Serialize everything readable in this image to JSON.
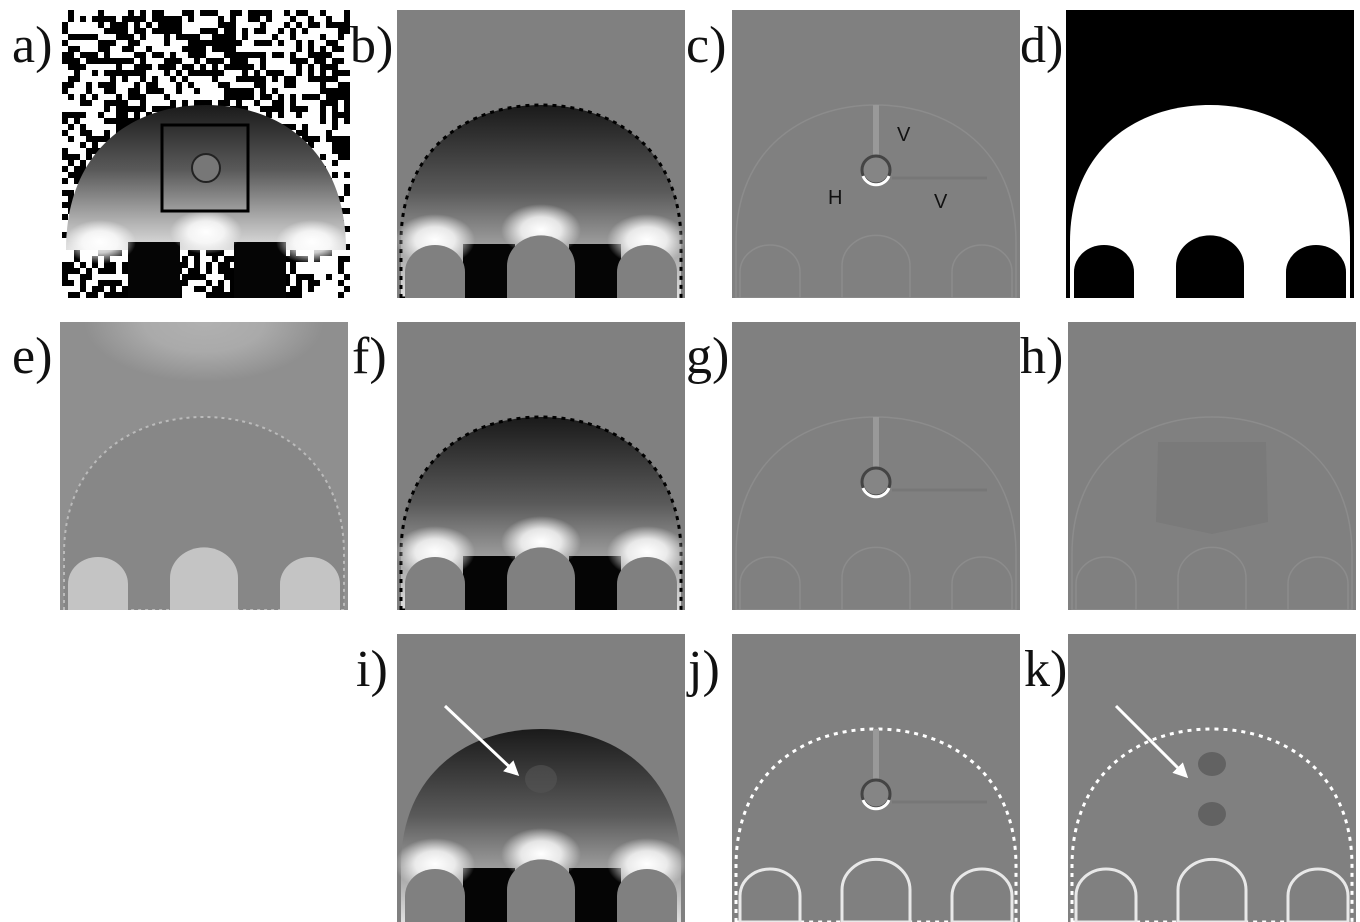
{
  "panels": [
    "a)",
    "b)",
    "c)",
    "d)",
    "e)",
    "f)",
    "g)",
    "h)",
    "i)",
    "j)",
    "k)"
  ],
  "annotations": [
    "V",
    "H",
    "V"
  ]
}
